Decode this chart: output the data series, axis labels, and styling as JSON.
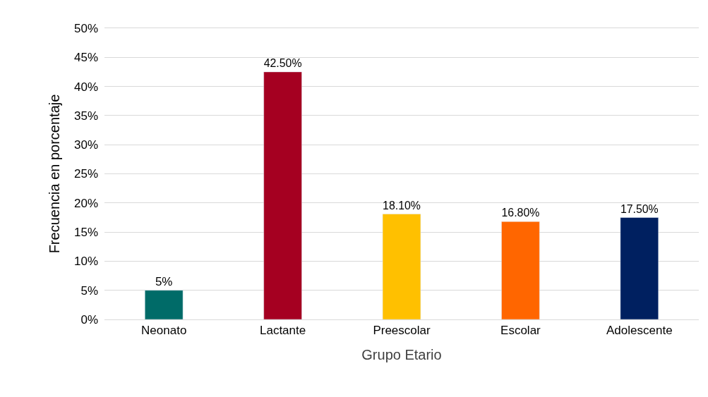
{
  "chart_data": {
    "type": "bar",
    "xlabel": "Grupo Etario",
    "ylabel": "Frecuencia en porcentaje",
    "categories": [
      "Neonato",
      "Lactante",
      "Preescolar",
      "Escolar",
      "Adolescente"
    ],
    "values": [
      5,
      42.5,
      18.1,
      16.8,
      17.5
    ],
    "colors": [
      "#006b68",
      "#a50021",
      "#ffc000",
      "#ff6600",
      "#002060"
    ],
    "value_labels": [
      "5%",
      "42.50%",
      "18.10%",
      "16.80%",
      "17.50%"
    ],
    "ylim": [
      0,
      50
    ],
    "yticks": [
      {
        "value": 0,
        "label": "0%"
      },
      {
        "value": 5,
        "label": "5%"
      },
      {
        "value": 10,
        "label": "10%"
      },
      {
        "value": 15,
        "label": "15%"
      },
      {
        "value": 20,
        "label": "20%"
      },
      {
        "value": 25,
        "label": "25%"
      },
      {
        "value": 30,
        "label": "30%"
      },
      {
        "value": 35,
        "label": "35%"
      },
      {
        "value": 40,
        "label": "40%"
      },
      {
        "value": 45,
        "label": "45%"
      },
      {
        "value": 50,
        "label": "50%"
      }
    ],
    "grid": "y"
  }
}
